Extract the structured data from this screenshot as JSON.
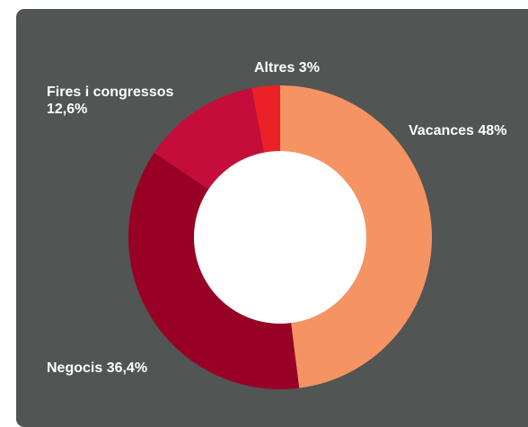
{
  "chart_data": {
    "type": "pie",
    "categories": [
      "Vacances",
      "Negocis",
      "Fires i congressos",
      "Altres"
    ],
    "values": [
      48,
      36.4,
      12.6,
      3
    ],
    "labels": [
      [
        "Vacances 48%"
      ],
      [
        "Negocis 36,4%"
      ],
      [
        "Fires i congressos",
        "12,6%"
      ],
      [
        "Altres 3%"
      ]
    ],
    "colors": [
      "#f59462",
      "#990026",
      "#c40d3b",
      "#ec2027"
    ],
    "donut": true,
    "legend": "none"
  },
  "colors": {
    "background": "#515553",
    "hole": "#ffffff",
    "label_text": "#ffffff"
  }
}
